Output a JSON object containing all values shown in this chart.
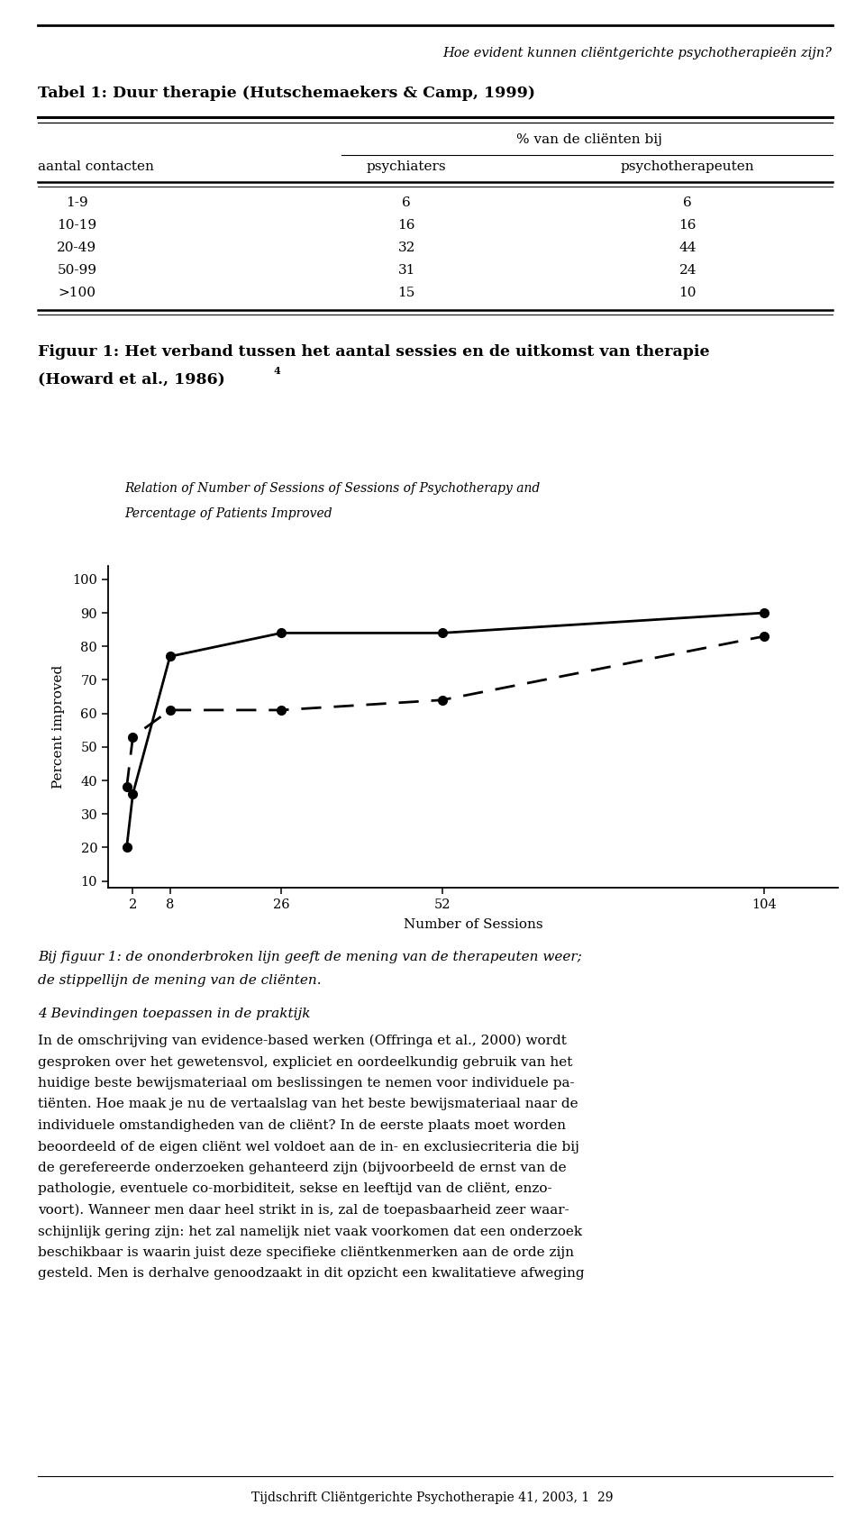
{
  "page_header": "Hoe evident kunnen cliëntgerichte psychotherapieën zijn?",
  "table_title": "Tabel 1: Duur therapie (Hutschemaekers & Camp, 1999)",
  "table_header_row1": "% van de cliënten bij",
  "table_col1": "aantal contacten",
  "table_col2": "psychiaters",
  "table_col3": "psychotherapeuten",
  "table_rows": [
    [
      "1-9",
      "6",
      "6"
    ],
    [
      "10-19",
      "16",
      "16"
    ],
    [
      "20-49",
      "32",
      "44"
    ],
    [
      "50-99",
      "31",
      "24"
    ],
    [
      ">100",
      "15",
      "10"
    ]
  ],
  "fig_caption_line1": "Figuur 1: Het verband tussen het aantal sessies en de uitkomst van therapie",
  "fig_caption_line2": "(Howard et al., 1986)",
  "fig_caption_sup": "4",
  "chart_title_line1": "Relation of Number of Sessions of Sessions of Psychotherapy and",
  "chart_title_line2": "Percentage of Patients Improved",
  "solid_x": [
    1,
    2,
    8,
    26,
    52,
    104
  ],
  "solid_y": [
    20,
    36,
    77,
    84,
    84,
    90
  ],
  "dashed_x": [
    1,
    2,
    8,
    26,
    52,
    104
  ],
  "dashed_y": [
    38,
    53,
    61,
    61,
    64,
    83
  ],
  "xlabel": "Number of Sessions",
  "ylabel": "Percent improved",
  "yticks": [
    10,
    20,
    30,
    40,
    50,
    60,
    70,
    80,
    90,
    100
  ],
  "xticks": [
    2,
    8,
    26,
    52,
    104
  ],
  "xlim": [
    -2,
    116
  ],
  "ylim": [
    8,
    104
  ],
  "caption_below_line1": "Bij figuur 1: de ononderbroken lijn geeft de mening van de therapeuten weer;",
  "caption_below_line2": "de stippellijn de mening van de cliënten.",
  "section4_title": "4 Bevindingen toepassen in de praktijk",
  "section4_body": [
    "In de omschrijving van evidence-based werken (Offringa et al., 2000) wordt",
    "gesproken over het gewetensvol, expliciet en oordeelkundig gebruik van het",
    "huidige beste bewijsmateriaal om beslissingen te nemen voor individuele pa-",
    "tiënten. Hoe maak je nu de vertaalslag van het beste bewijsmateriaal naar de",
    "individuele omstandigheden van de cliënt? In de eerste plaats moet worden",
    "beoordeeld of de eigen cliënt wel voldoet aan de in- en exclusiecriteria die bij",
    "de gerefereerde onderzoeken gehanteerd zijn (bijvoorbeeld de ernst van de",
    "pathologie, eventuele co-morbiditeit, sekse en leeftijd van de cliënt, enzo-",
    "voort). Wanneer men daar heel strikt in is, zal de toepasbaarheid zeer waar-",
    "schijnlijk gering zijn: het zal namelijk niet vaak voorkomen dat een onderzoek",
    "beschikbaar is waarin juist deze specifieke cliëntkenmerken aan de orde zijn",
    "gesteld. Men is derhalve genoodzaakt in dit opzicht een kwalitatieve afweging"
  ],
  "footer": "Tijdschrift Cliëntgerichte Psychotherapie 41, 2003, 1  29",
  "bg_color": "#ffffff",
  "text_color": "#000000"
}
